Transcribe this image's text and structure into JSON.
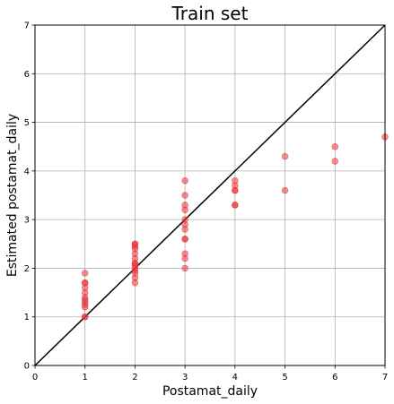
{
  "chart_data": {
    "type": "scatter",
    "title": "Train set",
    "xlabel": "Postamat_daily",
    "ylabel": "Estimated postamat_daily",
    "xlim": [
      0,
      7
    ],
    "ylim": [
      0,
      7
    ],
    "xticks": [
      "0",
      "1",
      "2",
      "3",
      "4",
      "5",
      "6",
      "7"
    ],
    "yticks": [
      "0",
      "1",
      "2",
      "3",
      "4",
      "5",
      "6",
      "7"
    ],
    "grid": true,
    "reference_line": "y = x",
    "point_color": "#e8343a",
    "line_color": "#000000",
    "grid_color": "#b0b0b0",
    "series": [
      {
        "points": [
          [
            1,
            1.0
          ],
          [
            1,
            1.0
          ],
          [
            1,
            1.2
          ],
          [
            1,
            1.25
          ],
          [
            1,
            1.3
          ],
          [
            1,
            1.35
          ],
          [
            1,
            1.4
          ],
          [
            1,
            1.5
          ],
          [
            1,
            1.6
          ],
          [
            1,
            1.7
          ],
          [
            1,
            1.7
          ],
          [
            1,
            1.9
          ],
          [
            2,
            1.7
          ],
          [
            2,
            1.8
          ],
          [
            2,
            1.9
          ],
          [
            2,
            1.95
          ],
          [
            2,
            2.0
          ],
          [
            2,
            2.05
          ],
          [
            2,
            2.1
          ],
          [
            2,
            2.1
          ],
          [
            2,
            2.2
          ],
          [
            2,
            2.3
          ],
          [
            2,
            2.4
          ],
          [
            2,
            2.45
          ],
          [
            2,
            2.5
          ],
          [
            2,
            2.5
          ],
          [
            3,
            2.0
          ],
          [
            3,
            2.2
          ],
          [
            3,
            2.3
          ],
          [
            3,
            2.6
          ],
          [
            3,
            2.6
          ],
          [
            3,
            2.8
          ],
          [
            3,
            2.9
          ],
          [
            3,
            3.0
          ],
          [
            3,
            3.2
          ],
          [
            3,
            3.3
          ],
          [
            3,
            3.5
          ],
          [
            3,
            3.8
          ],
          [
            4,
            3.3
          ],
          [
            4,
            3.3
          ],
          [
            4,
            3.6
          ],
          [
            4,
            3.6
          ],
          [
            4,
            3.7
          ],
          [
            4,
            3.8
          ],
          [
            5,
            3.6
          ],
          [
            5,
            4.3
          ],
          [
            6,
            4.2
          ],
          [
            6,
            4.5
          ],
          [
            7,
            4.7
          ]
        ]
      }
    ]
  }
}
